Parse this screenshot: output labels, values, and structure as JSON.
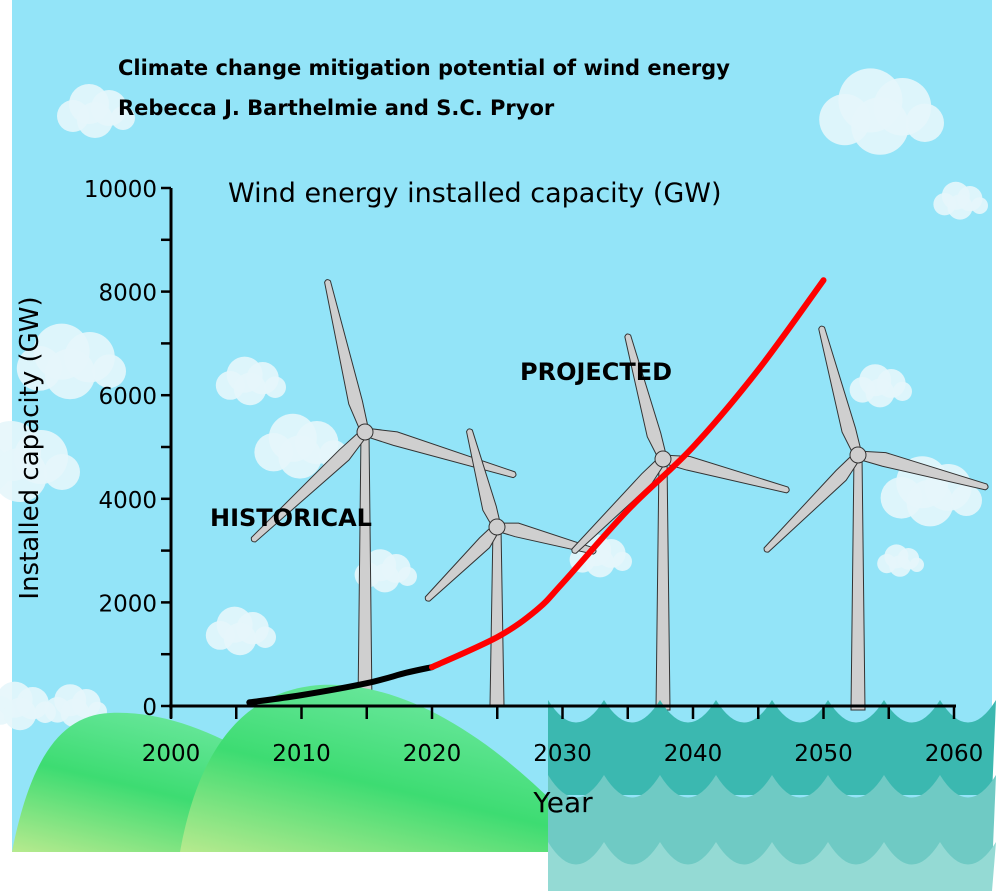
{
  "header": {
    "title": "Climate change mitigation potential of wind energy",
    "authors": "Rebecca J. Barthelmie and S.C. Pryor"
  },
  "chart_data": {
    "type": "line",
    "title": "Wind energy installed capacity (GW)",
    "xlabel": "Year",
    "ylabel": "Installed capacity (GW)",
    "xlim": [
      2000,
      2060
    ],
    "ylim": [
      0,
      10000
    ],
    "xticks": [
      "2000",
      "2010",
      "2020",
      "2030",
      "2040",
      "2050",
      "2060"
    ],
    "yticks": [
      "0",
      "2000",
      "4000",
      "6000",
      "8000",
      "10000"
    ],
    "grid": false,
    "annotations": [
      "HISTORICAL",
      "PROJECTED"
    ],
    "series": [
      {
        "color": "#000000",
        "x": [
          2006,
          2010,
          2015,
          2018,
          2020
        ],
        "y": [
          70,
          210,
          440,
          640,
          750
        ]
      },
      {
        "color": "#ff0000",
        "x": [
          2020,
          2025,
          2028,
          2030,
          2035,
          2040,
          2045,
          2050
        ],
        "y": [
          750,
          1330,
          1850,
          2370,
          3780,
          5000,
          6490,
          8220
        ]
      }
    ]
  },
  "colors": {
    "sky": "#93e4f8",
    "hill": "#3ddc72",
    "sea": "#3bb8b0"
  }
}
